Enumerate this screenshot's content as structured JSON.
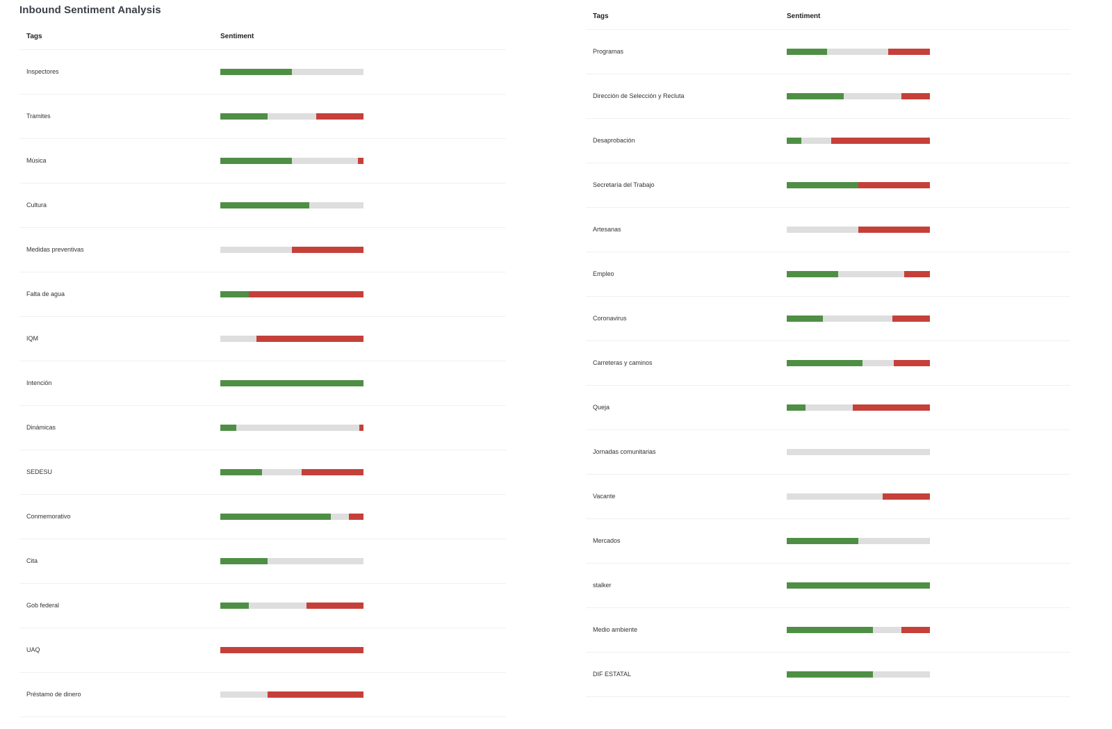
{
  "title": "Inbound Sentiment Analysis",
  "columns": {
    "tags": "Tags",
    "sentiment": "Sentiment"
  },
  "colors": {
    "positive": "#4f8f45",
    "neutral": "#dedede",
    "negative": "#c6403a"
  },
  "left_table": [
    {
      "tag": "Inspectores",
      "positive": 50,
      "neutral": 50,
      "negative": 0
    },
    {
      "tag": "Tramites",
      "positive": 33,
      "neutral": 34,
      "negative": 33
    },
    {
      "tag": "Música",
      "positive": 50,
      "neutral": 46,
      "negative": 4
    },
    {
      "tag": "Cultura",
      "positive": 62,
      "neutral": 38,
      "negative": 0
    },
    {
      "tag": "Medidas preventivas",
      "positive": 0,
      "neutral": 50,
      "negative": 50
    },
    {
      "tag": "Falta de agua",
      "positive": 20,
      "neutral": 0,
      "negative": 80
    },
    {
      "tag": "IQM",
      "positive": 0,
      "neutral": 25,
      "negative": 75
    },
    {
      "tag": "Intención",
      "positive": 100,
      "neutral": 0,
      "negative": 0
    },
    {
      "tag": "Dinámicas",
      "positive": 11,
      "neutral": 86,
      "negative": 3
    },
    {
      "tag": "SEDESU",
      "positive": 29,
      "neutral": 28,
      "negative": 43
    },
    {
      "tag": "Conmemorativo",
      "positive": 77,
      "neutral": 13,
      "negative": 10
    },
    {
      "tag": "Cita",
      "positive": 33,
      "neutral": 67,
      "negative": 0
    },
    {
      "tag": "Gob federal",
      "positive": 20,
      "neutral": 40,
      "negative": 40
    },
    {
      "tag": "UAQ",
      "positive": 0,
      "neutral": 0,
      "negative": 100
    },
    {
      "tag": "Préstamo de dinero",
      "positive": 0,
      "neutral": 33,
      "negative": 67
    }
  ],
  "right_table": [
    {
      "tag": "Programas",
      "positive": 28,
      "neutral": 43,
      "negative": 29
    },
    {
      "tag": "Dirección de Selección y Recluta",
      "positive": 40,
      "neutral": 40,
      "negative": 20
    },
    {
      "tag": "Desaprobación",
      "positive": 10,
      "neutral": 21,
      "negative": 69
    },
    {
      "tag": "Secretaría del Trabajo",
      "positive": 50,
      "neutral": 0,
      "negative": 50
    },
    {
      "tag": "Artesanas",
      "positive": 0,
      "neutral": 50,
      "negative": 50
    },
    {
      "tag": "Empleo",
      "positive": 36,
      "neutral": 46,
      "negative": 18
    },
    {
      "tag": "Coronavirus",
      "positive": 25,
      "neutral": 49,
      "negative": 26
    },
    {
      "tag": "Carreteras y caminos",
      "positive": 53,
      "neutral": 22,
      "negative": 25
    },
    {
      "tag": "Queja",
      "positive": 13,
      "neutral": 33,
      "negative": 54
    },
    {
      "tag": "Jornadas comunitarias",
      "positive": 0,
      "neutral": 100,
      "negative": 0
    },
    {
      "tag": "Vacante",
      "positive": 0,
      "neutral": 67,
      "negative": 33
    },
    {
      "tag": "Mercados",
      "positive": 50,
      "neutral": 50,
      "negative": 0
    },
    {
      "tag": "stalker",
      "positive": 100,
      "neutral": 0,
      "negative": 0
    },
    {
      "tag": "Medio ambiente",
      "positive": 60,
      "neutral": 20,
      "negative": 20
    },
    {
      "tag": "DIF ESTATAL",
      "positive": 60,
      "neutral": 40,
      "negative": 0
    }
  ]
}
